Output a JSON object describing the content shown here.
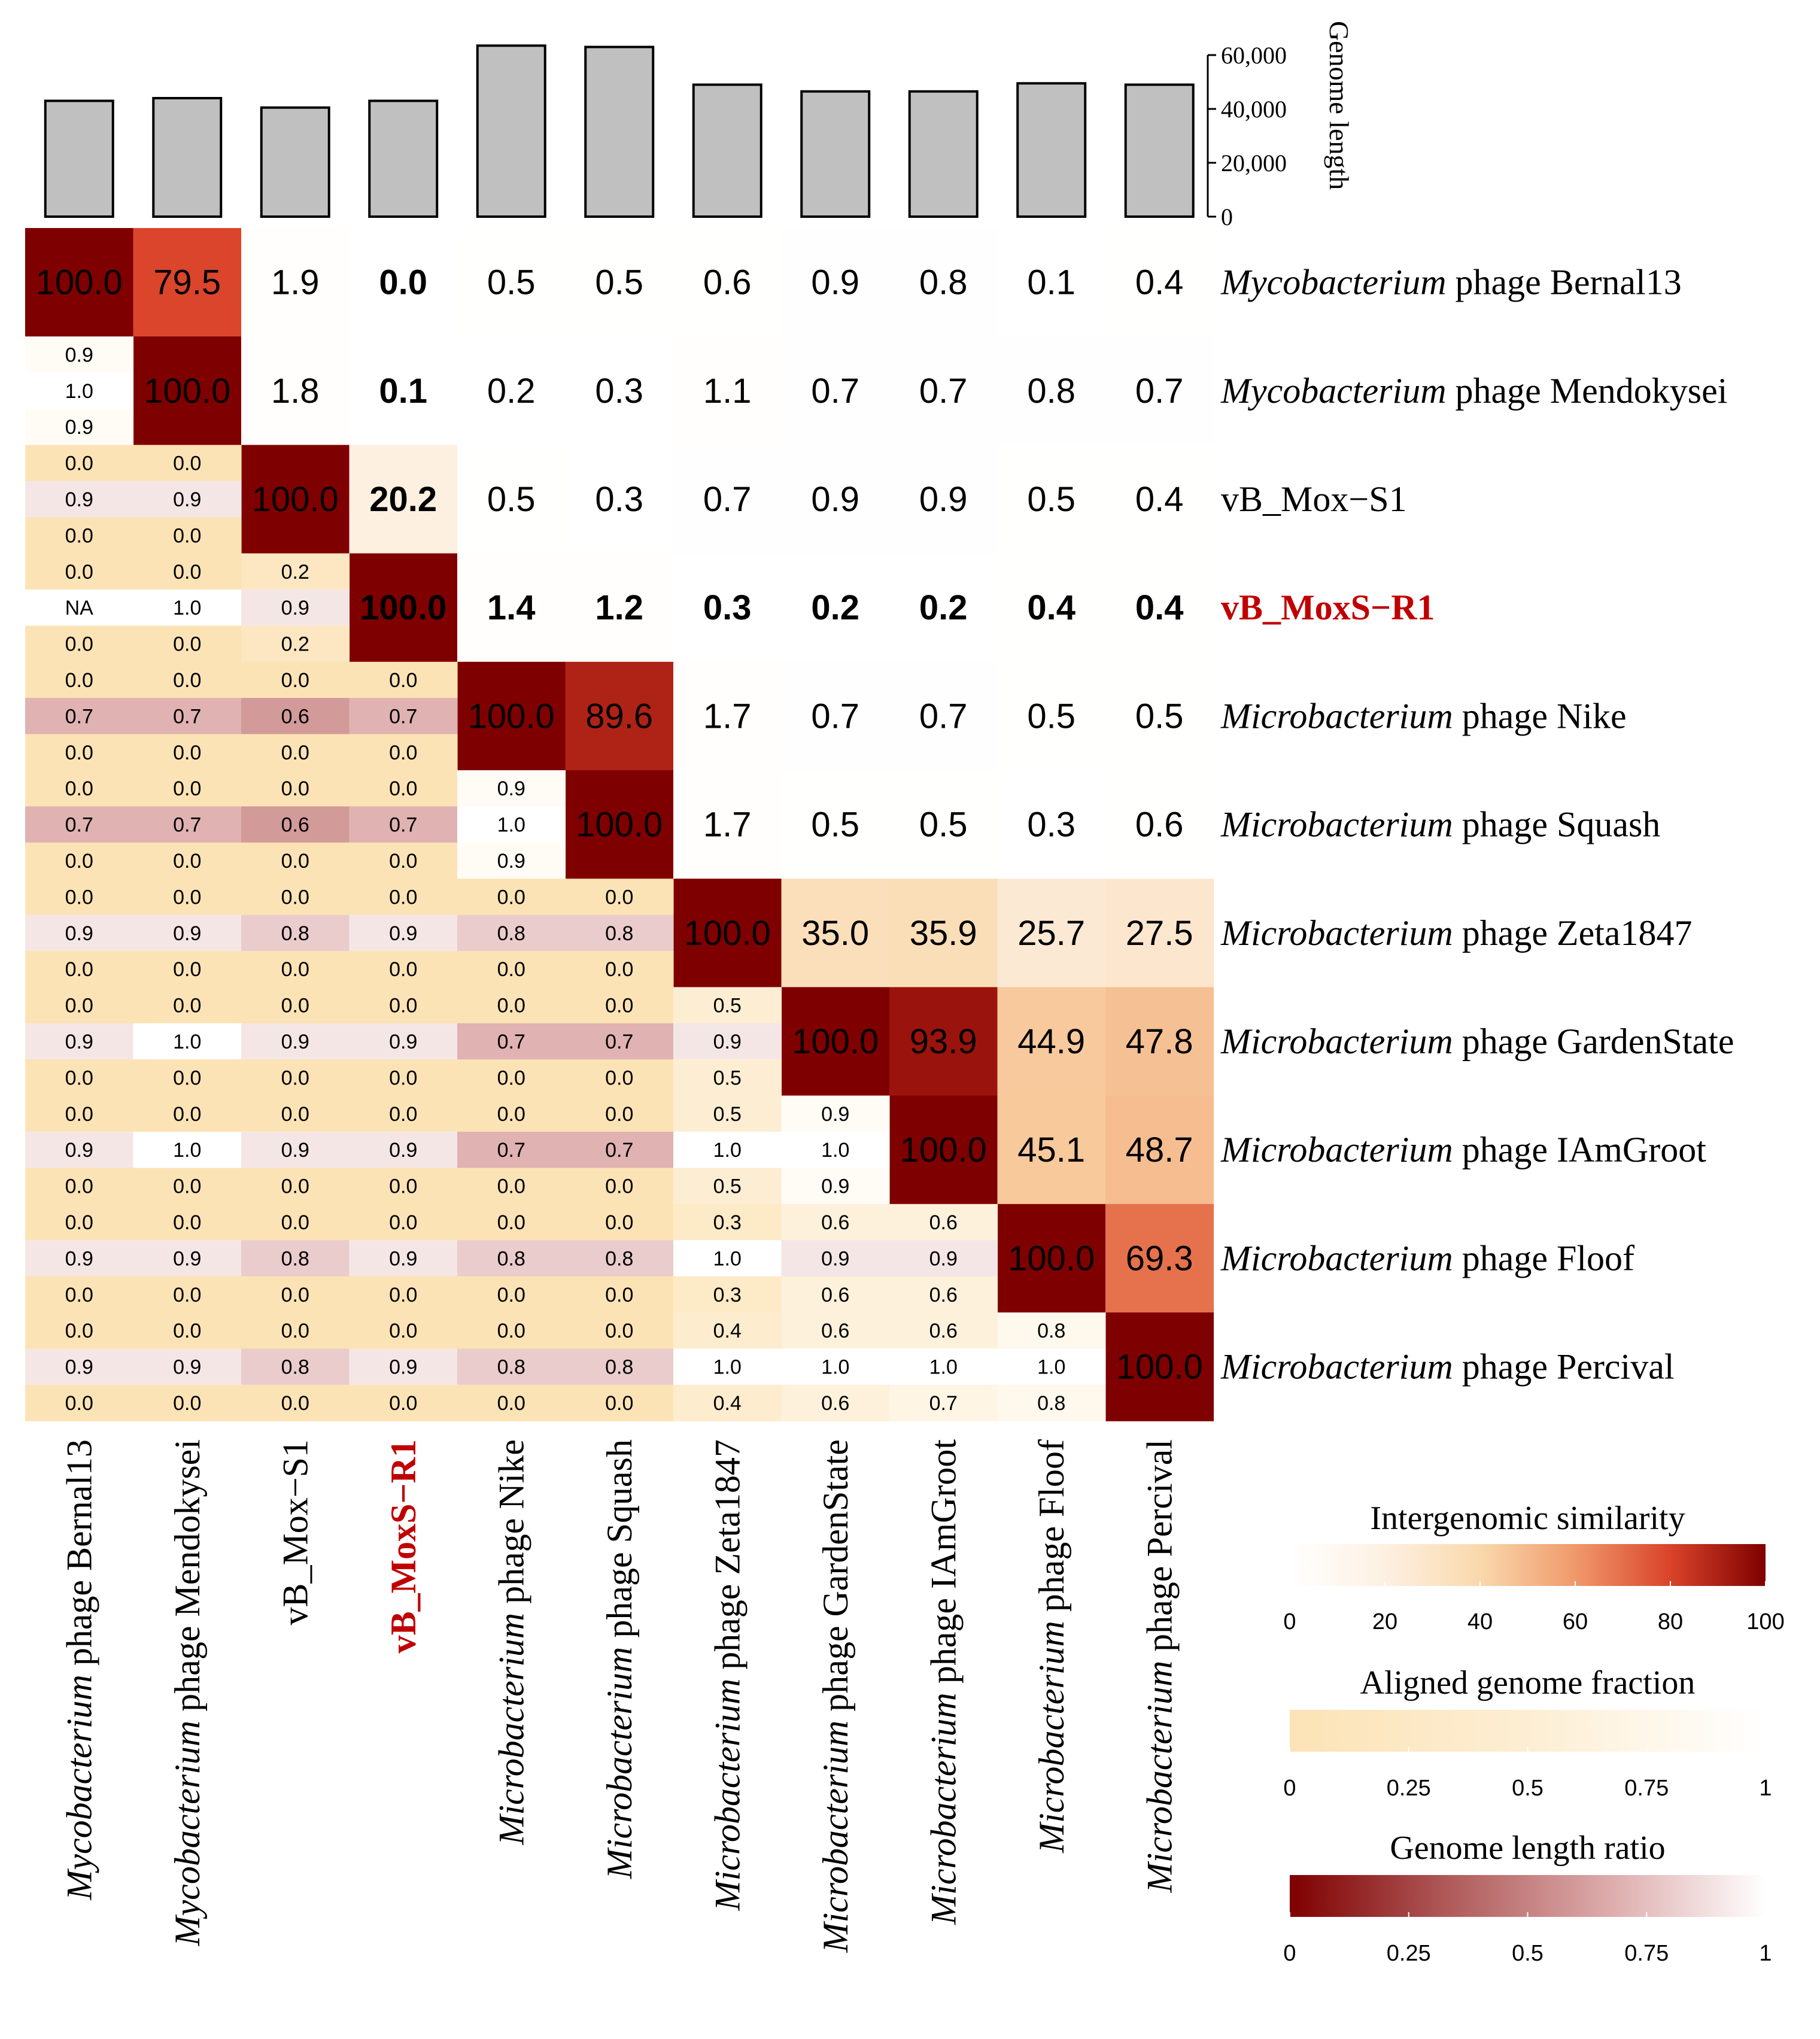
{
  "chart_data": {
    "type": "heatmap",
    "genomes": [
      {
        "prefix": "Mycobacterium",
        "suffix": " phage Bernal13",
        "highlight": false
      },
      {
        "prefix": "Mycobacterium",
        "suffix": " phage Mendokysei",
        "highlight": false
      },
      {
        "prefix": "",
        "suffix": "vB_Mox−S1",
        "highlight": false
      },
      {
        "prefix": "",
        "suffix": "vB_MoxS−R1",
        "highlight": true
      },
      {
        "prefix": "Microbacterium",
        "suffix": " phage Nike",
        "highlight": false
      },
      {
        "prefix": "Microbacterium",
        "suffix": " phage Squash",
        "highlight": false
      },
      {
        "prefix": "Microbacterium",
        "suffix": " phage Zeta1847",
        "highlight": false
      },
      {
        "prefix": "Microbacterium",
        "suffix": " phage GardenState",
        "highlight": false
      },
      {
        "prefix": "Microbacterium",
        "suffix": " phage IAmGroot",
        "highlight": false
      },
      {
        "prefix": "Microbacterium",
        "suffix": " phage Floof",
        "highlight": false
      },
      {
        "prefix": "Microbacterium",
        "suffix": " phage Percival",
        "highlight": false
      }
    ],
    "genome_length": {
      "axis_title": "Genome length",
      "ticks": [
        "0",
        "20,000",
        "40,000",
        "60,000"
      ],
      "tick_values": [
        0,
        20000,
        40000,
        60000
      ],
      "ylim": [
        0,
        60000
      ],
      "values": [
        43000,
        44000,
        40500,
        43000,
        63500,
        63000,
        49000,
        46500,
        46500,
        49500,
        49000
      ]
    },
    "intergenomic_similarity": [
      [
        "100.0",
        "79.5",
        "1.9",
        "0.0",
        "0.5",
        "0.5",
        "0.6",
        "0.9",
        "0.8",
        "0.1",
        "0.4"
      ],
      [
        null,
        "100.0",
        "1.8",
        "0.1",
        "0.2",
        "0.3",
        "1.1",
        "0.7",
        "0.7",
        "0.8",
        "0.7"
      ],
      [
        null,
        null,
        "100.0",
        "20.2",
        "0.5",
        "0.3",
        "0.7",
        "0.9",
        "0.9",
        "0.5",
        "0.4"
      ],
      [
        null,
        null,
        null,
        "100.0",
        "1.4",
        "1.2",
        "0.3",
        "0.2",
        "0.2",
        "0.4",
        "0.4"
      ],
      [
        null,
        null,
        null,
        null,
        "100.0",
        "89.6",
        "1.7",
        "0.7",
        "0.7",
        "0.5",
        "0.5"
      ],
      [
        null,
        null,
        null,
        null,
        null,
        "100.0",
        "1.7",
        "0.5",
        "0.5",
        "0.3",
        "0.6"
      ],
      [
        null,
        null,
        null,
        null,
        null,
        null,
        "100.0",
        "35.0",
        "35.9",
        "25.7",
        "27.5"
      ],
      [
        null,
        null,
        null,
        null,
        null,
        null,
        null,
        "100.0",
        "93.9",
        "44.9",
        "47.8"
      ],
      [
        null,
        null,
        null,
        null,
        null,
        null,
        null,
        null,
        "100.0",
        "45.1",
        "48.7"
      ],
      [
        null,
        null,
        null,
        null,
        null,
        null,
        null,
        null,
        null,
        "100.0",
        "69.3"
      ],
      [
        null,
        null,
        null,
        null,
        null,
        null,
        null,
        null,
        null,
        null,
        "100.0"
      ]
    ],
    "bold_rows": [
      3
    ],
    "bold_cols": [
      3
    ],
    "lower_triangle": [
      {
        "row": 1,
        "col": 0,
        "top": "0.9",
        "mid": "1.0",
        "bot": "0.9"
      },
      {
        "row": 2,
        "col": 0,
        "top": "0.0",
        "mid": "0.9",
        "bot": "0.0"
      },
      {
        "row": 2,
        "col": 1,
        "top": "0.0",
        "mid": "0.9",
        "bot": "0.0"
      },
      {
        "row": 3,
        "col": 0,
        "top": "0.0",
        "mid": "NA",
        "bot": "0.0"
      },
      {
        "row": 3,
        "col": 1,
        "top": "0.0",
        "mid": "1.0",
        "bot": "0.0"
      },
      {
        "row": 3,
        "col": 2,
        "top": "0.2",
        "mid": "0.9",
        "bot": "0.2"
      },
      {
        "row": 4,
        "col": 0,
        "top": "0.0",
        "mid": "0.7",
        "bot": "0.0"
      },
      {
        "row": 4,
        "col": 1,
        "top": "0.0",
        "mid": "0.7",
        "bot": "0.0"
      },
      {
        "row": 4,
        "col": 2,
        "top": "0.0",
        "mid": "0.6",
        "bot": "0.0"
      },
      {
        "row": 4,
        "col": 3,
        "top": "0.0",
        "mid": "0.7",
        "bot": "0.0"
      },
      {
        "row": 5,
        "col": 0,
        "top": "0.0",
        "mid": "0.7",
        "bot": "0.0"
      },
      {
        "row": 5,
        "col": 1,
        "top": "0.0",
        "mid": "0.7",
        "bot": "0.0"
      },
      {
        "row": 5,
        "col": 2,
        "top": "0.0",
        "mid": "0.6",
        "bot": "0.0"
      },
      {
        "row": 5,
        "col": 3,
        "top": "0.0",
        "mid": "0.7",
        "bot": "0.0"
      },
      {
        "row": 5,
        "col": 4,
        "top": "0.9",
        "mid": "1.0",
        "bot": "0.9"
      },
      {
        "row": 6,
        "col": 0,
        "top": "0.0",
        "mid": "0.9",
        "bot": "0.0"
      },
      {
        "row": 6,
        "col": 1,
        "top": "0.0",
        "mid": "0.9",
        "bot": "0.0"
      },
      {
        "row": 6,
        "col": 2,
        "top": "0.0",
        "mid": "0.8",
        "bot": "0.0"
      },
      {
        "row": 6,
        "col": 3,
        "top": "0.0",
        "mid": "0.9",
        "bot": "0.0"
      },
      {
        "row": 6,
        "col": 4,
        "top": "0.0",
        "mid": "0.8",
        "bot": "0.0"
      },
      {
        "row": 6,
        "col": 5,
        "top": "0.0",
        "mid": "0.8",
        "bot": "0.0"
      },
      {
        "row": 7,
        "col": 0,
        "top": "0.0",
        "mid": "0.9",
        "bot": "0.0"
      },
      {
        "row": 7,
        "col": 1,
        "top": "0.0",
        "mid": "1.0",
        "bot": "0.0"
      },
      {
        "row": 7,
        "col": 2,
        "top": "0.0",
        "mid": "0.9",
        "bot": "0.0"
      },
      {
        "row": 7,
        "col": 3,
        "top": "0.0",
        "mid": "0.9",
        "bot": "0.0"
      },
      {
        "row": 7,
        "col": 4,
        "top": "0.0",
        "mid": "0.7",
        "bot": "0.0"
      },
      {
        "row": 7,
        "col": 5,
        "top": "0.0",
        "mid": "0.7",
        "bot": "0.0"
      },
      {
        "row": 7,
        "col": 6,
        "top": "0.5",
        "mid": "0.9",
        "bot": "0.5"
      },
      {
        "row": 8,
        "col": 0,
        "top": "0.0",
        "mid": "0.9",
        "bot": "0.0"
      },
      {
        "row": 8,
        "col": 1,
        "top": "0.0",
        "mid": "1.0",
        "bot": "0.0"
      },
      {
        "row": 8,
        "col": 2,
        "top": "0.0",
        "mid": "0.9",
        "bot": "0.0"
      },
      {
        "row": 8,
        "col": 3,
        "top": "0.0",
        "mid": "0.9",
        "bot": "0.0"
      },
      {
        "row": 8,
        "col": 4,
        "top": "0.0",
        "mid": "0.7",
        "bot": "0.0"
      },
      {
        "row": 8,
        "col": 5,
        "top": "0.0",
        "mid": "0.7",
        "bot": "0.0"
      },
      {
        "row": 8,
        "col": 6,
        "top": "0.5",
        "mid": "1.0",
        "bot": "0.5"
      },
      {
        "row": 8,
        "col": 7,
        "top": "0.9",
        "mid": "1.0",
        "bot": "0.9"
      },
      {
        "row": 9,
        "col": 0,
        "top": "0.0",
        "mid": "0.9",
        "bot": "0.0"
      },
      {
        "row": 9,
        "col": 1,
        "top": "0.0",
        "mid": "0.9",
        "bot": "0.0"
      },
      {
        "row": 9,
        "col": 2,
        "top": "0.0",
        "mid": "0.8",
        "bot": "0.0"
      },
      {
        "row": 9,
        "col": 3,
        "top": "0.0",
        "mid": "0.9",
        "bot": "0.0"
      },
      {
        "row": 9,
        "col": 4,
        "top": "0.0",
        "mid": "0.8",
        "bot": "0.0"
      },
      {
        "row": 9,
        "col": 5,
        "top": "0.0",
        "mid": "0.8",
        "bot": "0.0"
      },
      {
        "row": 9,
        "col": 6,
        "top": "0.3",
        "mid": "1.0",
        "bot": "0.3"
      },
      {
        "row": 9,
        "col": 7,
        "top": "0.6",
        "mid": "0.9",
        "bot": "0.6"
      },
      {
        "row": 9,
        "col": 8,
        "top": "0.6",
        "mid": "0.9",
        "bot": "0.6"
      },
      {
        "row": 10,
        "col": 0,
        "top": "0.0",
        "mid": "0.9",
        "bot": "0.0"
      },
      {
        "row": 10,
        "col": 1,
        "top": "0.0",
        "mid": "0.9",
        "bot": "0.0"
      },
      {
        "row": 10,
        "col": 2,
        "top": "0.0",
        "mid": "0.8",
        "bot": "0.0"
      },
      {
        "row": 10,
        "col": 3,
        "top": "0.0",
        "mid": "0.9",
        "bot": "0.0"
      },
      {
        "row": 10,
        "col": 4,
        "top": "0.0",
        "mid": "0.8",
        "bot": "0.0"
      },
      {
        "row": 10,
        "col": 5,
        "top": "0.0",
        "mid": "0.8",
        "bot": "0.0"
      },
      {
        "row": 10,
        "col": 6,
        "top": "0.4",
        "mid": "1.0",
        "bot": "0.4"
      },
      {
        "row": 10,
        "col": 7,
        "top": "0.6",
        "mid": "1.0",
        "bot": "0.6"
      },
      {
        "row": 10,
        "col": 8,
        "top": "0.6",
        "mid": "1.0",
        "bot": "0.7"
      },
      {
        "row": 10,
        "col": 9,
        "top": "0.8",
        "mid": "1.0",
        "bot": "0.8"
      }
    ],
    "legends": [
      {
        "title": "Intergenomic similarity",
        "ticks": [
          "0",
          "20",
          "40",
          "60",
          "80",
          "100"
        ],
        "tick_values": [
          0,
          20,
          40,
          60,
          80,
          100
        ],
        "range": [
          0,
          100
        ],
        "stops": [
          "#ffffff",
          "#fdf0e2",
          "#f9d9ac",
          "#f0996b",
          "#d9432a",
          "#7f0000"
        ]
      },
      {
        "title": "Aligned genome fraction",
        "ticks": [
          "0",
          "0.25",
          "0.5",
          "0.75",
          "1"
        ],
        "tick_values": [
          0,
          0.25,
          0.5,
          0.75,
          1
        ],
        "range": [
          0,
          1
        ],
        "stops": [
          "#fce3b6",
          "#fdeed3",
          "#ffffff"
        ]
      },
      {
        "title": "Genome length ratio",
        "ticks": [
          "0",
          "0.25",
          "0.5",
          "0.75",
          "1"
        ],
        "tick_values": [
          0,
          0.25,
          0.5,
          0.75,
          1
        ],
        "range": [
          0,
          1
        ],
        "stops": [
          "#7f0000",
          "#b05a5a",
          "#dcaaaa",
          "#ffffff"
        ]
      }
    ],
    "colors": {
      "bar_fill": "#c0c0c0",
      "stroke": "#000000",
      "highlight_text": "#c00000",
      "na_fill": "#ffffff"
    }
  }
}
